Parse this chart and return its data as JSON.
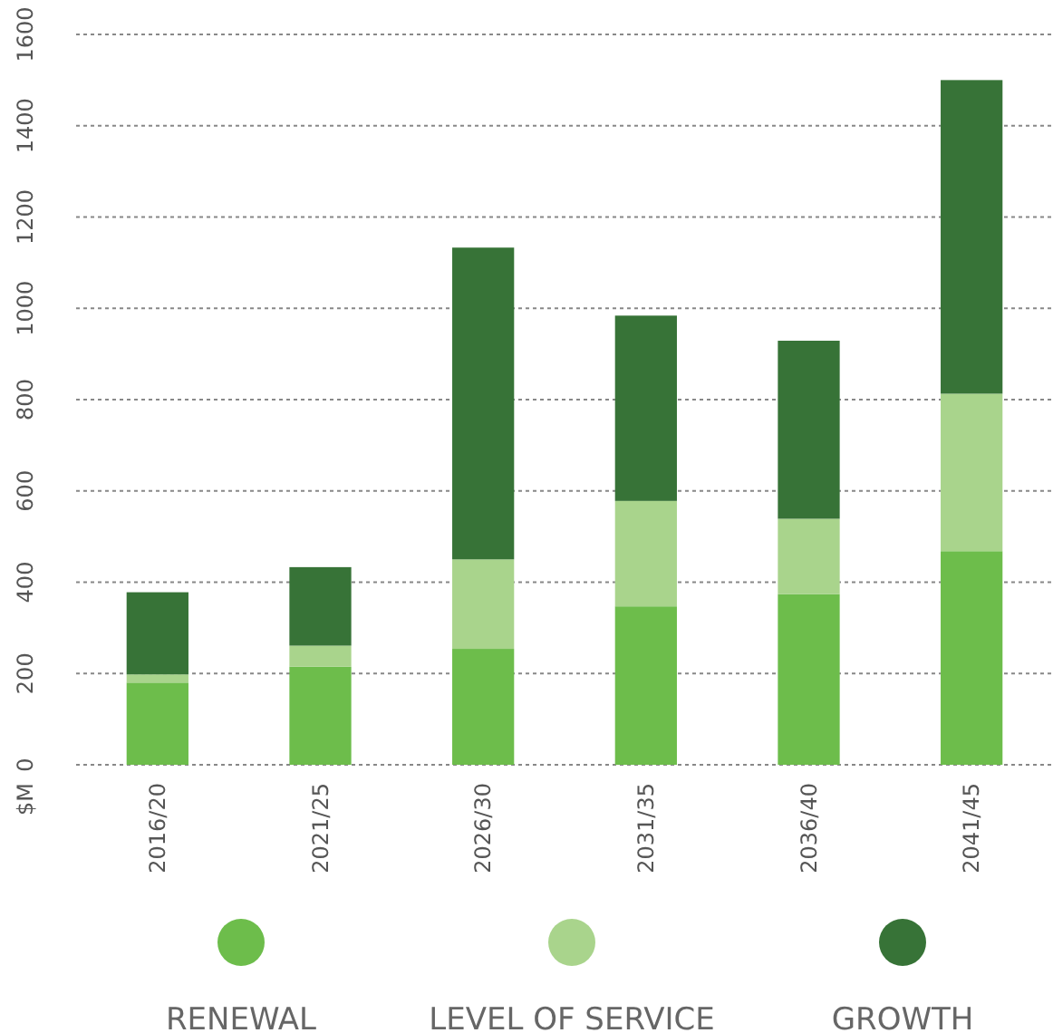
{
  "chart_data": {
    "type": "bar",
    "stacked": true,
    "ylabel": "$M",
    "categories": [
      "2016/20",
      "2021/25",
      "2026/30",
      "2031/35",
      "2036/40",
      "2041/45"
    ],
    "series": [
      {
        "name": "RENEWAL",
        "color": "#6dbd4b",
        "values": [
          180,
          215,
          254,
          347,
          374,
          468
        ]
      },
      {
        "name": "LEVEL OF SERVICE",
        "color": "#a9d48c",
        "values": [
          18,
          46,
          196,
          231,
          165,
          345
        ]
      },
      {
        "name": "GROWTH",
        "color": "#377337",
        "values": [
          180,
          172,
          683,
          406,
          390,
          687
        ]
      }
    ],
    "ylim": [
      0,
      1600
    ],
    "yticks": [
      0,
      200,
      400,
      600,
      800,
      1000,
      1200,
      1400,
      1600
    ],
    "grid": "y",
    "legend": "bottom"
  }
}
